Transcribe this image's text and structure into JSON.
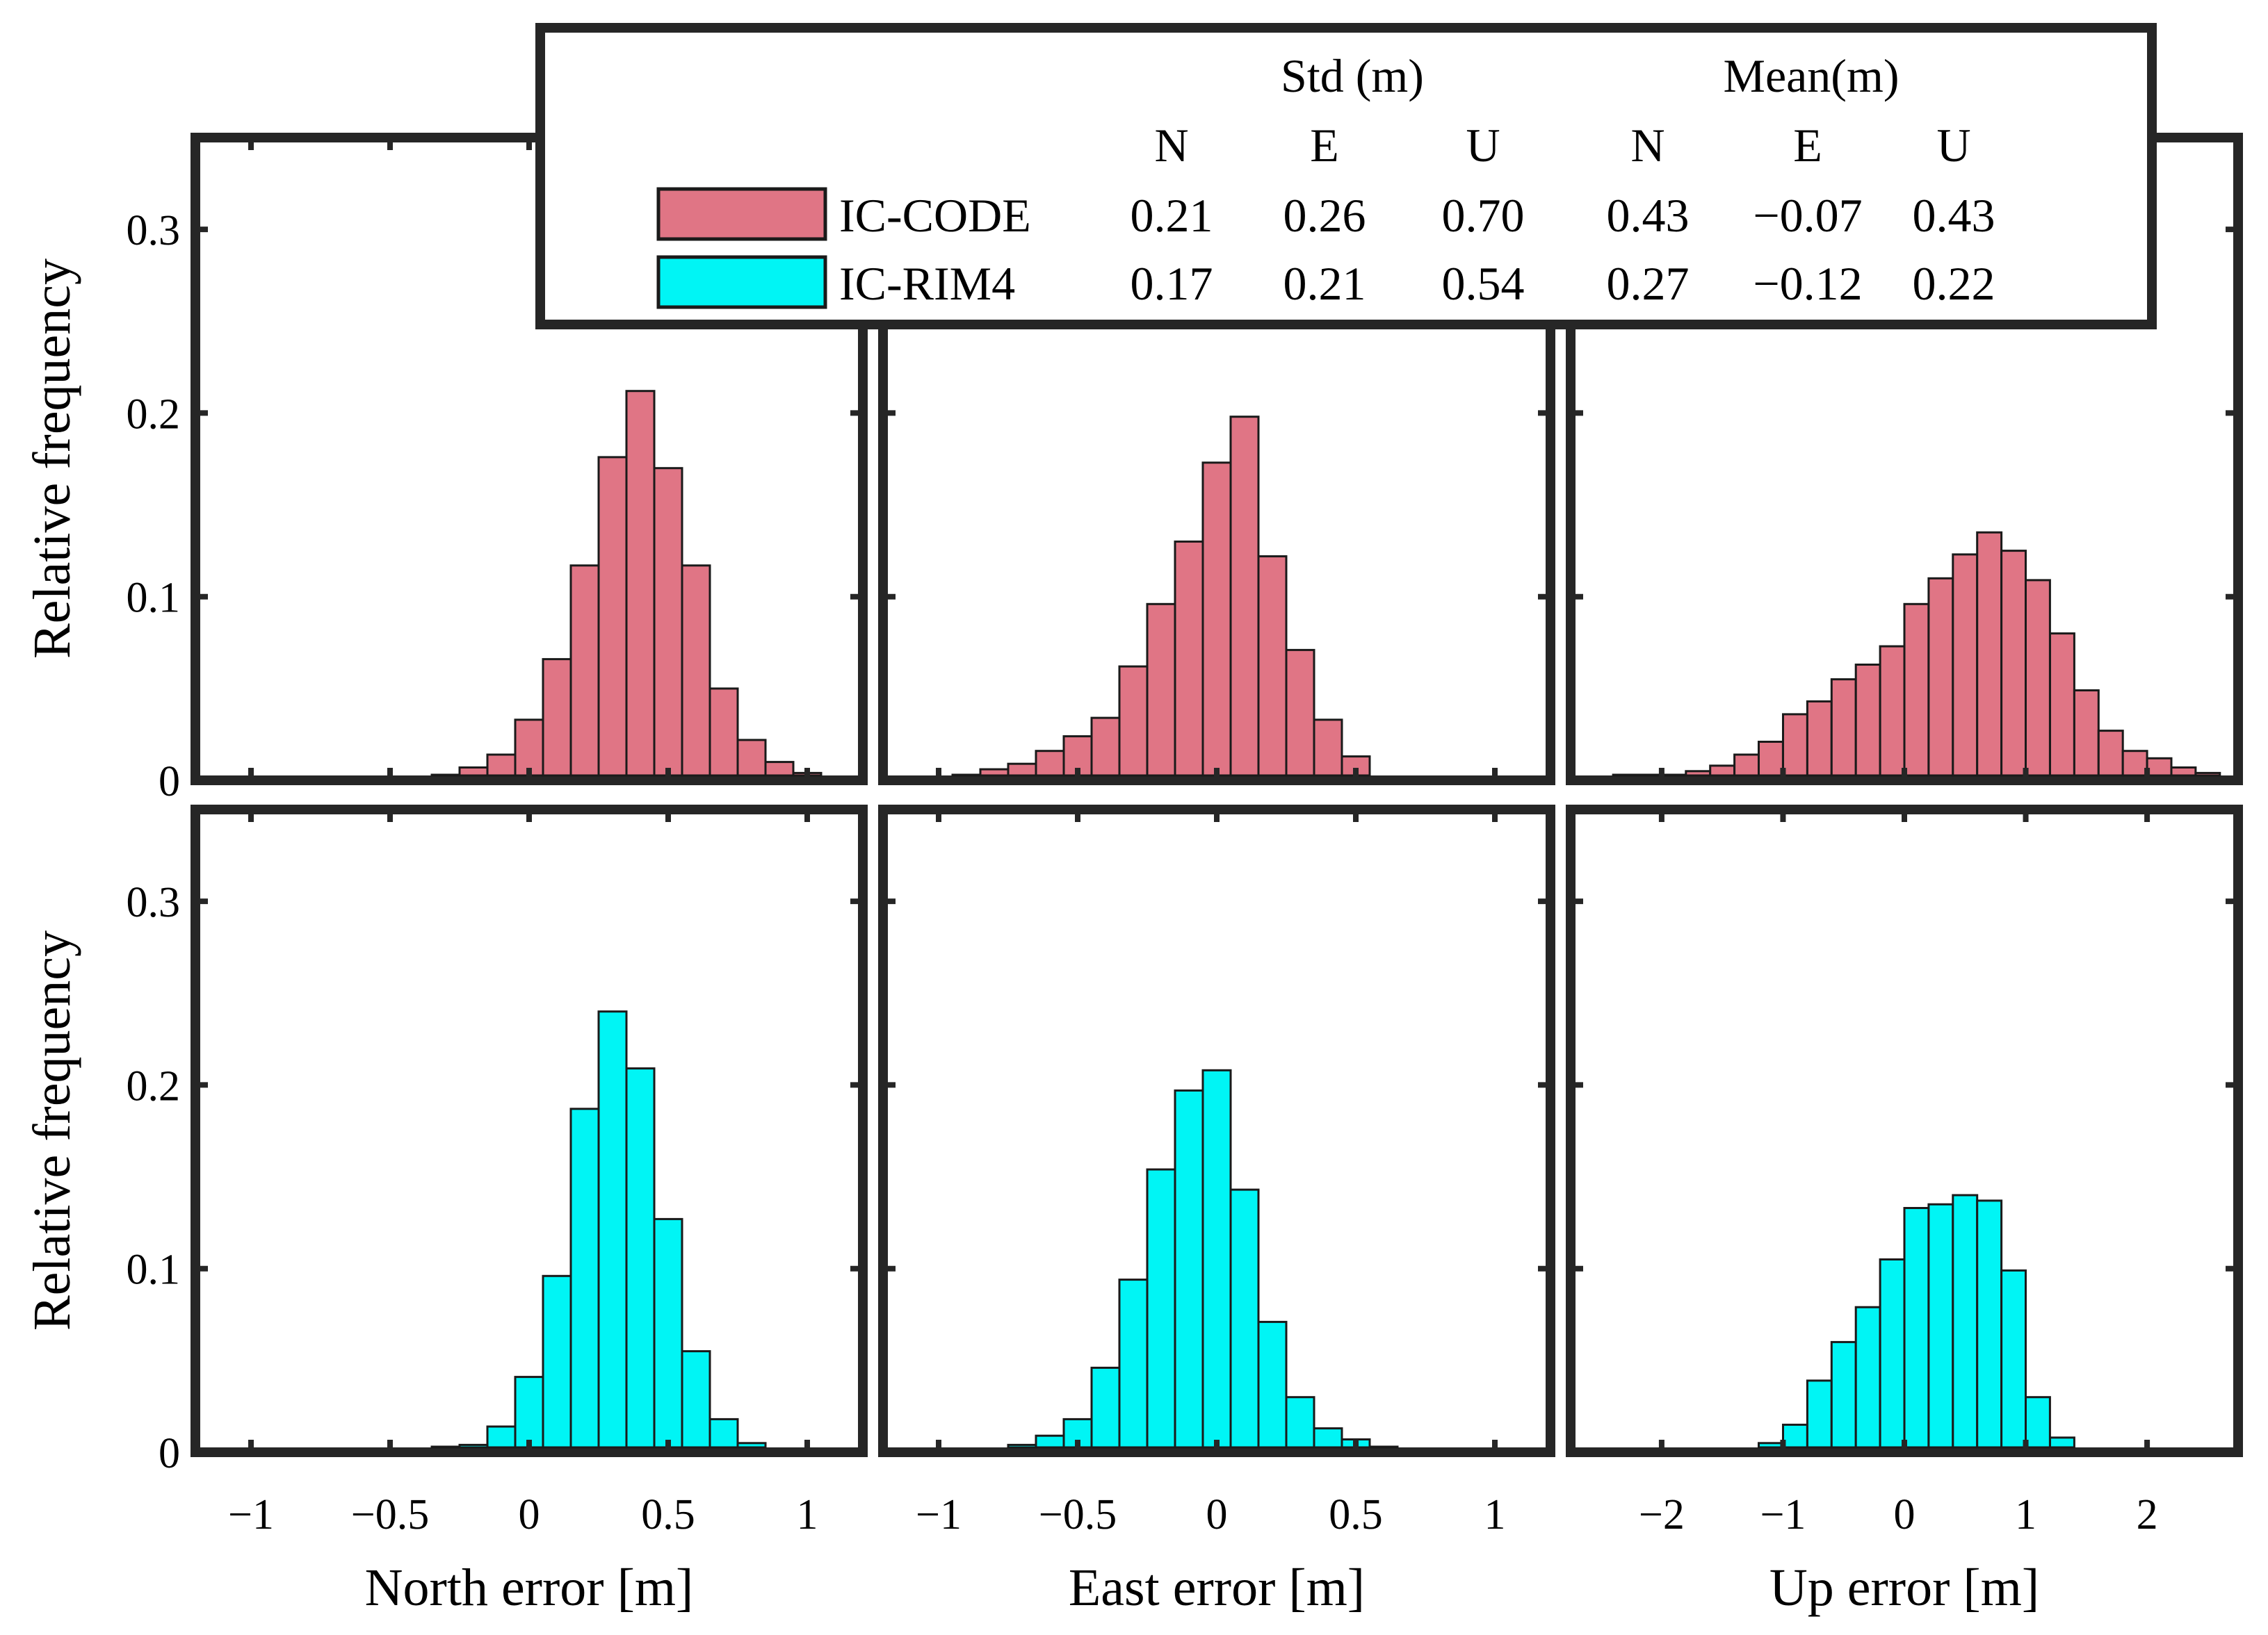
{
  "legend": {
    "header_std": "Std (m)",
    "header_mean": "Mean(m)",
    "components": [
      "N",
      "E",
      "U",
      "N",
      "E",
      "U"
    ],
    "entries": [
      {
        "name": "IC-CODE",
        "color": "#e07585",
        "values": [
          "0.21",
          "0.26",
          "0.70",
          "0.43",
          "−0.07",
          "0.43"
        ]
      },
      {
        "name": "IC-RIM4",
        "color": "#00f5f5",
        "values": [
          "0.17",
          "0.21",
          "0.54",
          "0.27",
          "−0.12",
          "0.22"
        ]
      }
    ]
  },
  "colors": {
    "code": "#e07585",
    "rim4": "#00f5f5",
    "edge": "#1a1a1a",
    "frame": "#262626"
  },
  "chart_data": [
    {
      "type": "bar",
      "panel": "north-code",
      "series": "IC-CODE",
      "xlim": [
        -1.2,
        1.2
      ],
      "ylim": [
        0,
        0.35
      ],
      "bin_width": 0.1,
      "x": [
        -0.3,
        -0.2,
        -0.1,
        0.0,
        0.1,
        0.2,
        0.3,
        0.4,
        0.5,
        0.6,
        0.7,
        0.8,
        0.9,
        1.0
      ],
      "values": [
        0.001,
        0.007,
        0.014,
        0.033,
        0.066,
        0.117,
        0.176,
        0.212,
        0.17,
        0.117,
        0.05,
        0.022,
        0.01,
        0.004
      ]
    },
    {
      "type": "bar",
      "panel": "east-code",
      "series": "IC-CODE",
      "xlim": [
        -1.2,
        1.2
      ],
      "ylim": [
        0,
        0.35
      ],
      "bin_width": 0.1,
      "x": [
        -0.9,
        -0.8,
        -0.7,
        -0.6,
        -0.5,
        -0.4,
        -0.3,
        -0.2,
        -0.1,
        0.0,
        0.1,
        0.2,
        0.3,
        0.4,
        0.5
      ],
      "values": [
        0.002,
        0.006,
        0.009,
        0.016,
        0.024,
        0.034,
        0.062,
        0.096,
        0.13,
        0.173,
        0.198,
        0.122,
        0.071,
        0.033,
        0.013
      ]
    },
    {
      "type": "bar",
      "panel": "up-code",
      "series": "IC-CODE",
      "xlim": [
        -2.75,
        2.75
      ],
      "ylim": [
        0,
        0.35
      ],
      "bin_width": 0.2,
      "x": [
        -2.3,
        -2.1,
        -1.9,
        -1.7,
        -1.5,
        -1.3,
        -1.1,
        -0.9,
        -0.7,
        -0.5,
        -0.3,
        -0.1,
        0.1,
        0.3,
        0.5,
        0.7,
        0.9,
        1.1,
        1.3,
        1.5,
        1.7,
        1.9,
        2.1,
        2.3,
        2.5
      ],
      "values": [
        0.001,
        0.002,
        0.003,
        0.005,
        0.008,
        0.014,
        0.021,
        0.036,
        0.043,
        0.055,
        0.063,
        0.073,
        0.096,
        0.11,
        0.123,
        0.135,
        0.125,
        0.109,
        0.08,
        0.049,
        0.027,
        0.016,
        0.012,
        0.007,
        0.004
      ]
    },
    {
      "type": "bar",
      "panel": "north-rim4",
      "series": "IC-RIM4",
      "xlim": [
        -1.2,
        1.2
      ],
      "ylim": [
        0,
        0.35
      ],
      "bin_width": 0.1,
      "x": [
        -0.3,
        -0.2,
        -0.1,
        0.0,
        0.1,
        0.2,
        0.3,
        0.4,
        0.5,
        0.6,
        0.7,
        0.8
      ],
      "values": [
        0.001,
        0.004,
        0.014,
        0.041,
        0.096,
        0.187,
        0.24,
        0.209,
        0.127,
        0.055,
        0.018,
        0.005
      ]
    },
    {
      "type": "bar",
      "panel": "east-rim4",
      "series": "IC-RIM4",
      "xlim": [
        -1.2,
        1.2
      ],
      "ylim": [
        0,
        0.35
      ],
      "bin_width": 0.1,
      "x": [
        -0.7,
        -0.6,
        -0.5,
        -0.4,
        -0.3,
        -0.2,
        -0.1,
        0.0,
        0.1,
        0.2,
        0.3,
        0.4,
        0.5,
        0.6
      ],
      "values": [
        0.004,
        0.009,
        0.018,
        0.046,
        0.094,
        0.154,
        0.197,
        0.208,
        0.143,
        0.071,
        0.03,
        0.013,
        0.007,
        0.003
      ]
    },
    {
      "type": "bar",
      "panel": "up-rim4",
      "series": "IC-RIM4",
      "xlim": [
        -2.75,
        2.75
      ],
      "ylim": [
        0,
        0.35
      ],
      "bin_width": 0.2,
      "x": [
        -1.1,
        -0.9,
        -0.7,
        -0.5,
        -0.3,
        -0.1,
        0.1,
        0.3,
        0.5,
        0.7,
        0.9,
        1.1,
        1.3
      ],
      "values": [
        0.005,
        0.015,
        0.039,
        0.06,
        0.079,
        0.105,
        0.133,
        0.135,
        0.14,
        0.137,
        0.099,
        0.03,
        0.008
      ]
    }
  ],
  "axes": {
    "ylabel": "Relative frequency",
    "yticks": [
      "0",
      "0.1",
      "0.2",
      "0.3"
    ],
    "ytick_values": [
      0,
      0.1,
      0.2,
      0.3
    ],
    "xlabels": [
      "North error [m]",
      "East error [m]",
      "Up error [m]"
    ],
    "xticks_ne": [
      "−1",
      "−0.5",
      "0",
      "0.5",
      "1"
    ],
    "xticks_ne_values": [
      -1,
      -0.5,
      0,
      0.5,
      1
    ],
    "xticks_u": [
      "−2",
      "−1",
      "0",
      "1",
      "2"
    ],
    "xticks_u_values": [
      -2,
      -1,
      0,
      1,
      2
    ]
  }
}
